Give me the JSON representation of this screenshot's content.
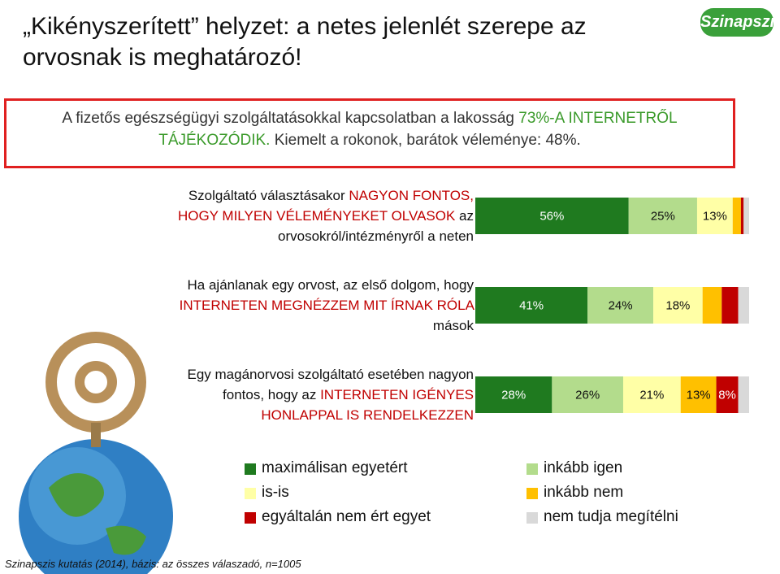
{
  "header": {
    "title": "„Kikényszerített” helyzet: a netes jelenlét szerepe az orvosnak is meghatározó!",
    "logo": "Szinapszis"
  },
  "callout": {
    "parts": [
      "A fizetős egészségügyi szolgáltatásokkal kapcsolatban a lakosság ",
      "73%-A INTERNETRŐL TÁJÉKOZÓDIK.",
      " Kiemelt a rokonok, barátok véleménye: 48%."
    ],
    "highlight_color": "#3a9a2a"
  },
  "chart_data": {
    "type": "stacked-bar-horizontal",
    "categories": [
      [
        "Szolgáltató választásakor ",
        "NAGYON FONTOS, HOGY MILYEN VÉLEMÉNYEKET OLVASOK",
        " az orvosokról/intézményről a neten"
      ],
      [
        "Ha ajánlanak egy orvost, az első dolgom, hogy ",
        "INTERNETEN MEGNÉZZEM MIT ÍRNAK RÓLA",
        " mások"
      ],
      [
        "Egy magánorvosi szolgáltató esetében nagyon fontos, hogy az ",
        "INTERNETEN IGÉNYES HONLAPPAL IS RENDELKEZZEN",
        ""
      ]
    ],
    "category_highlight_color": "#c00000",
    "xlim": [
      0,
      100
    ],
    "series": [
      {
        "name": "maximálisan egyetért",
        "color": "#1f7a1f",
        "values": [
          56,
          41,
          28
        ],
        "value_labels": [
          "56%",
          "41%",
          "28%"
        ]
      },
      {
        "name": "inkább igen",
        "color": "#b3dc8c",
        "values": [
          25,
          24,
          26
        ],
        "value_labels": [
          "25%",
          "24%",
          "26%"
        ]
      },
      {
        "name": "is-is",
        "color": "#ffffa6",
        "values": [
          13,
          18,
          21
        ],
        "value_labels": [
          "13%",
          "18%",
          "21%"
        ]
      },
      {
        "name": "inkább nem",
        "color": "#ffc000",
        "values": [
          3,
          7,
          13
        ],
        "value_labels": [
          null,
          null,
          "13%"
        ]
      },
      {
        "name": "egyáltalán nem ért egyet",
        "color": "#c00000",
        "values": [
          1,
          6,
          8
        ],
        "value_labels": [
          null,
          null,
          "8%"
        ]
      },
      {
        "name": "nem tudja megítélni",
        "color": "#d9d9d9",
        "values": [
          2,
          4,
          4
        ],
        "value_labels": [
          null,
          null,
          null
        ]
      }
    ]
  },
  "footnote": "Szinapszis kutatás (2014), bázis: az összes válaszadó, n=1005"
}
